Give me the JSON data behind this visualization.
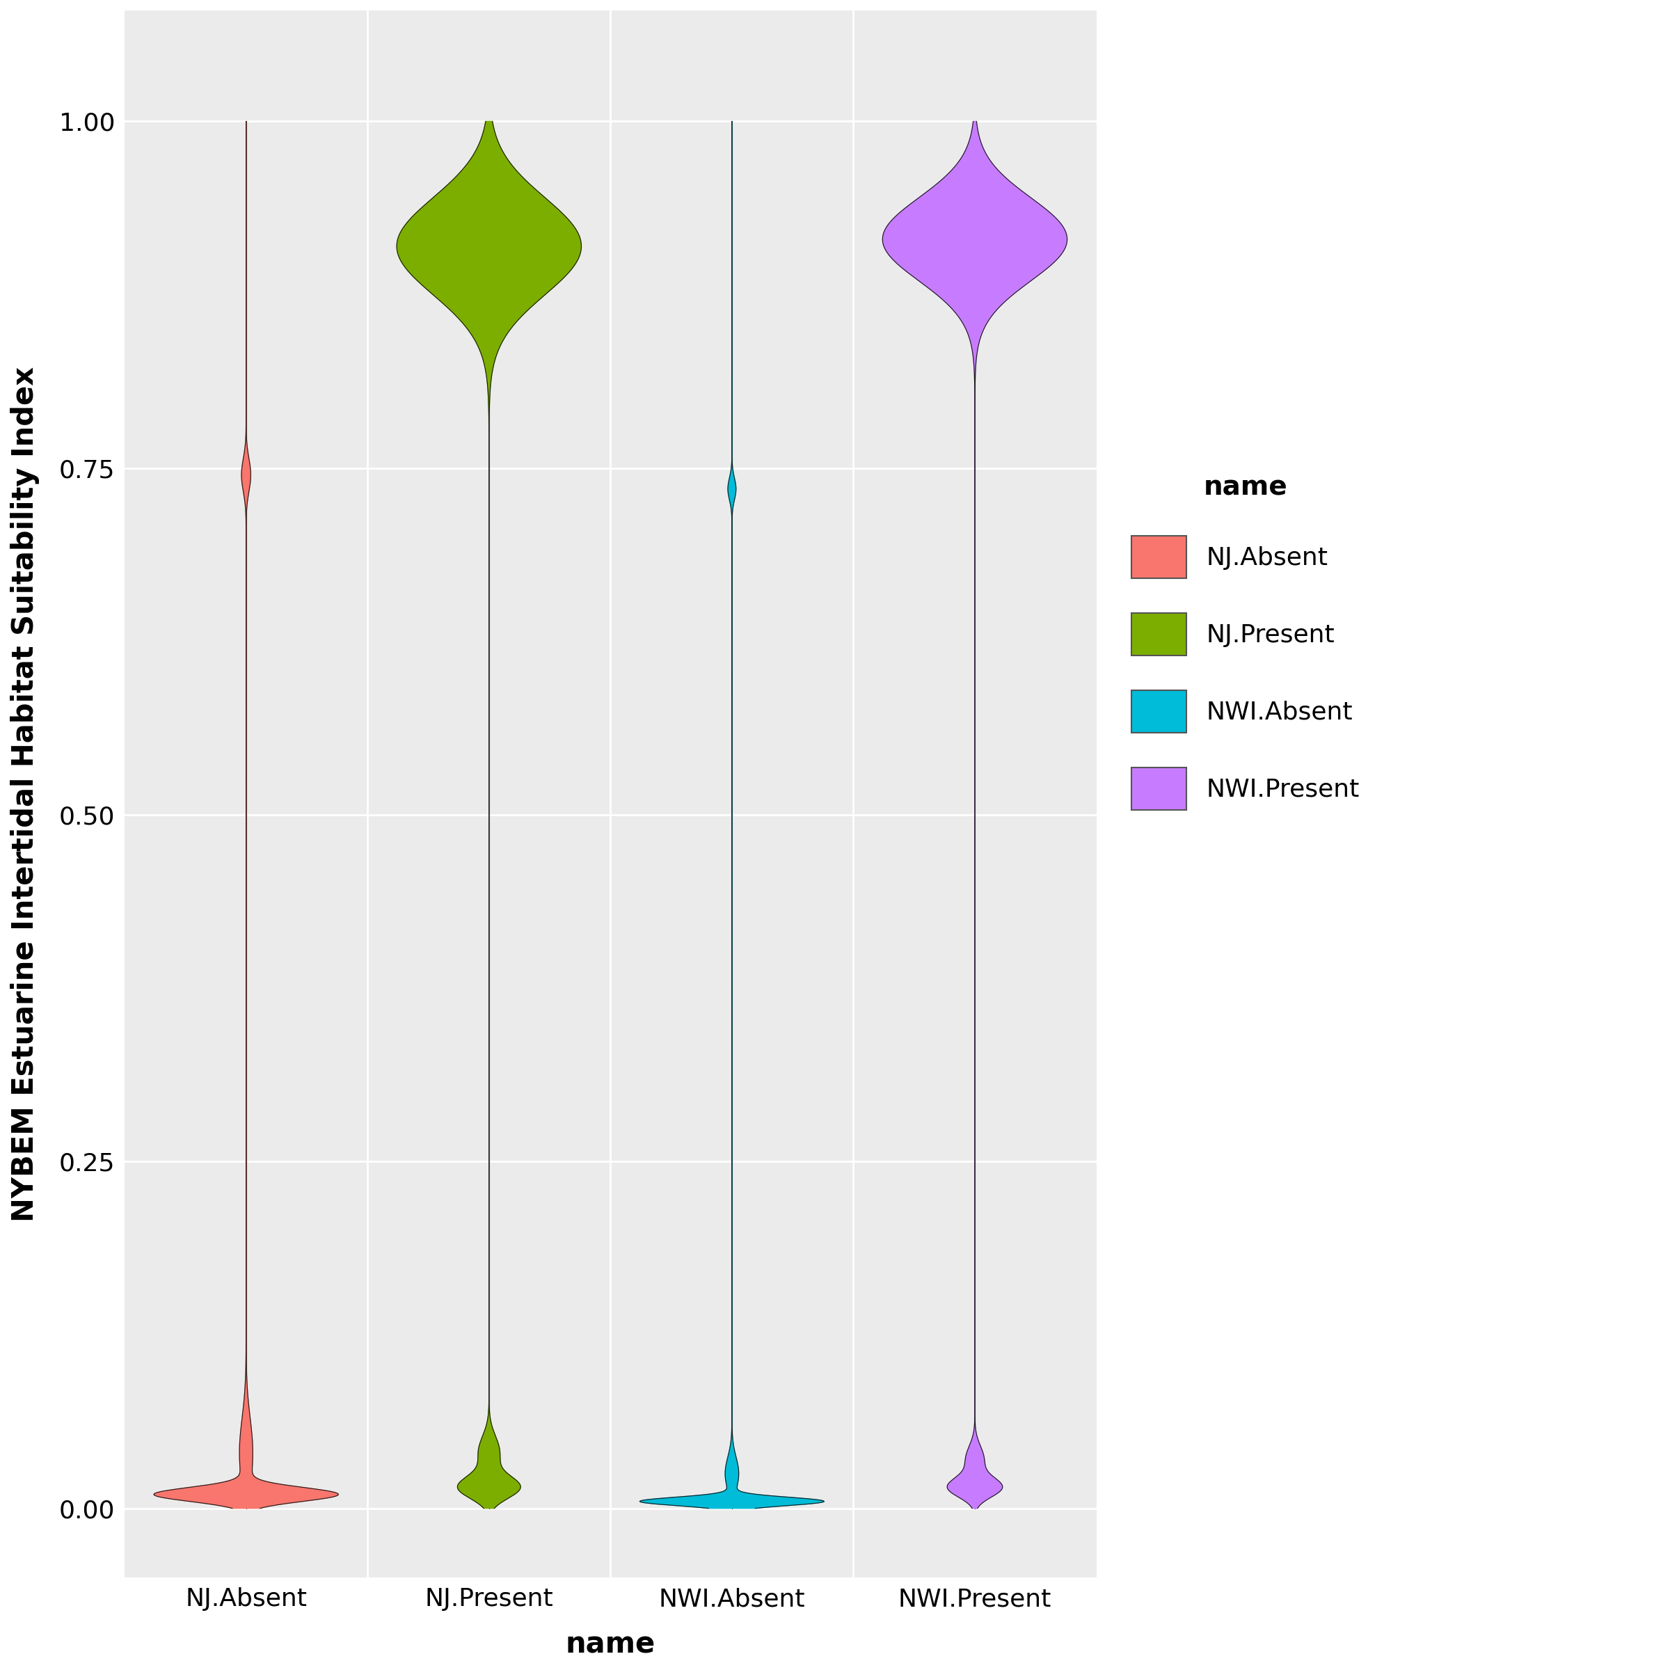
{
  "categories": [
    "NJ.Absent",
    "NJ.Present",
    "NWI.Absent",
    "NWI.Present"
  ],
  "colors": {
    "NJ.Absent": "#F8766D",
    "NJ.Present": "#7CAE00",
    "NWI.Absent": "#00BCD8",
    "NWI.Present": "#C77CFF"
  },
  "ylabel": "NYBEM Estuarine Intertidal Habitat Suitability Index",
  "xlabel": "name",
  "legend_title": "name",
  "ylim": [
    -0.05,
    1.08
  ],
  "yticks": [
    0.0,
    0.25,
    0.5,
    0.75,
    1.0
  ],
  "background_color": "#EBEBEB",
  "grid_color": "#FFFFFF",
  "axis_fontsize": 30,
  "tick_fontsize": 26,
  "legend_fontsize": 28
}
